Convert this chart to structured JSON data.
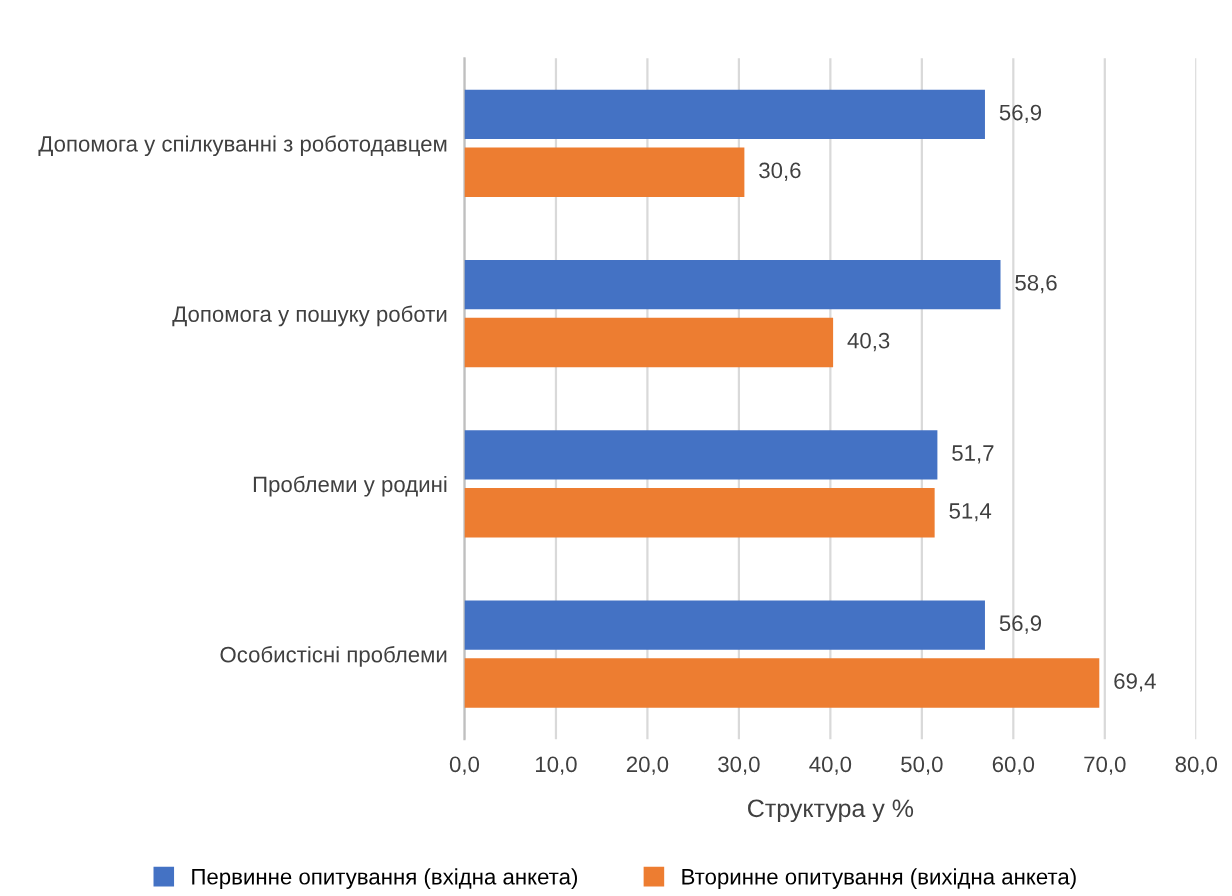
{
  "chart_data": {
    "type": "bar",
    "orientation": "horizontal",
    "categories": [
      "Допомога у спілкуванні з роботодавцем",
      "Допомога у пошуку роботи",
      "Проблеми у родині",
      "Особистісні проблеми"
    ],
    "series": [
      {
        "name": "Первинне опитування (вхідна анкета)",
        "color": "#4472c4",
        "values": [
          56.9,
          58.6,
          51.7,
          56.9
        ],
        "value_labels": [
          "56,9",
          "58,6",
          "51,7",
          "56,9"
        ]
      },
      {
        "name": "Вторинне опитування (вихідна анкета)",
        "color": "#ed7d31",
        "values": [
          30.6,
          40.3,
          51.4,
          69.4
        ],
        "value_labels": [
          "30,6",
          "40,3",
          "51,4",
          "69,4"
        ]
      }
    ],
    "xlabel": "Структура у %",
    "xlim": [
      0,
      80
    ],
    "xticks": [
      {
        "value": 0,
        "label": "0,0"
      },
      {
        "value": 10,
        "label": "10,0"
      },
      {
        "value": 20,
        "label": "20,0"
      },
      {
        "value": 30,
        "label": "30,0"
      },
      {
        "value": 40,
        "label": "40,0"
      },
      {
        "value": 50,
        "label": "50,0"
      },
      {
        "value": 60,
        "label": "60,0"
      },
      {
        "value": 70,
        "label": "70,0"
      },
      {
        "value": 80,
        "label": "80,0"
      }
    ],
    "grid": "x",
    "legend": "bottom"
  }
}
